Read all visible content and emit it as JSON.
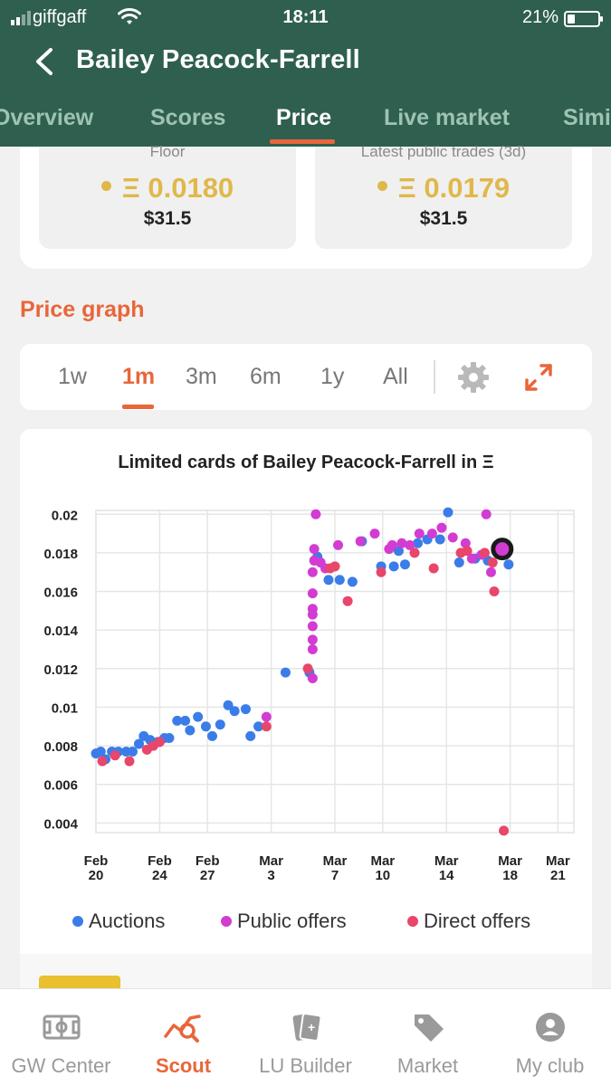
{
  "status": {
    "carrier": "giffgaff",
    "time": "18:11",
    "battery": "21%"
  },
  "header": {
    "title": "Bailey Peacock-Farrell"
  },
  "tabs": [
    {
      "label": "Overview",
      "active": false
    },
    {
      "label": "Scores",
      "active": false
    },
    {
      "label": "Price",
      "active": true
    },
    {
      "label": "Live market",
      "active": false
    },
    {
      "label": "Simi",
      "active": false
    }
  ],
  "price_cards": [
    {
      "label": "Floor",
      "eth": "Ξ 0.0180",
      "usd": "$31.5"
    },
    {
      "label": "Latest public trades (3d)",
      "eth": "Ξ 0.0179",
      "usd": "$31.5"
    }
  ],
  "section_title": "Price graph",
  "ranges": [
    {
      "label": "1w",
      "active": false
    },
    {
      "label": "1m",
      "active": true
    },
    {
      "label": "3m",
      "active": false
    },
    {
      "label": "6m",
      "active": false
    },
    {
      "label": "1y",
      "active": false
    },
    {
      "label": "All",
      "active": false
    }
  ],
  "range_icons": {
    "settings": "gear-icon",
    "expand": "expand-icon"
  },
  "colors": {
    "header": "#2f5f4f",
    "accent": "#e8663a",
    "eth": "#e0b84a",
    "auctions": "#3a7de8",
    "public_offers": "#d23cd2",
    "direct_offers": "#e8466a"
  },
  "chart_data": {
    "type": "scatter",
    "title": "Limited cards of Bailey Peacock-Farrell in Ξ",
    "ylim": [
      0.0035,
      0.0202
    ],
    "yticks": [
      "0.02",
      "0.018",
      "0.016",
      "0.014",
      "0.012",
      "0.01",
      "0.008",
      "0.006",
      "0.004"
    ],
    "ytick_values": [
      0.02,
      0.018,
      0.016,
      0.014,
      0.012,
      0.01,
      0.008,
      0.006,
      0.004
    ],
    "xlim": [
      0,
      30
    ],
    "xticks": [
      {
        "month": "Feb",
        "day": "20",
        "x": 0
      },
      {
        "month": "Feb",
        "day": "24",
        "x": 4
      },
      {
        "month": "Feb",
        "day": "27",
        "x": 7
      },
      {
        "month": "Mar",
        "day": "3",
        "x": 11
      },
      {
        "month": "Mar",
        "day": "7",
        "x": 15
      },
      {
        "month": "Mar",
        "day": "10",
        "x": 18
      },
      {
        "month": "Mar",
        "day": "14",
        "x": 22
      },
      {
        "month": "Mar",
        "day": "18",
        "x": 26
      },
      {
        "month": "Mar",
        "day": "21",
        "x": 29
      }
    ],
    "grid": true,
    "legend_position": "bottom",
    "series": [
      {
        "name": "Auctions",
        "color": "#3a7de8",
        "points": [
          [
            0.0,
            0.0076
          ],
          [
            0.3,
            0.0077
          ],
          [
            0.6,
            0.0073
          ],
          [
            1.0,
            0.0077
          ],
          [
            1.4,
            0.0077
          ],
          [
            1.9,
            0.0077
          ],
          [
            2.3,
            0.0077
          ],
          [
            2.7,
            0.0081
          ],
          [
            3.0,
            0.0085
          ],
          [
            3.4,
            0.0083
          ],
          [
            3.9,
            0.0082
          ],
          [
            4.3,
            0.0084
          ],
          [
            4.6,
            0.0084
          ],
          [
            5.1,
            0.0093
          ],
          [
            5.6,
            0.0093
          ],
          [
            5.9,
            0.0088
          ],
          [
            6.4,
            0.0095
          ],
          [
            6.9,
            0.009
          ],
          [
            7.3,
            0.0085
          ],
          [
            7.8,
            0.0091
          ],
          [
            8.3,
            0.0101
          ],
          [
            8.7,
            0.0098
          ],
          [
            9.4,
            0.0099
          ],
          [
            9.7,
            0.0085
          ],
          [
            10.2,
            0.009
          ],
          [
            11.9,
            0.0118
          ],
          [
            13.4,
            0.0118
          ],
          [
            13.9,
            0.0178
          ],
          [
            14.6,
            0.0166
          ],
          [
            15.3,
            0.0166
          ],
          [
            16.1,
            0.0165
          ],
          [
            16.7,
            0.0186
          ],
          [
            17.9,
            0.0173
          ],
          [
            18.7,
            0.0173
          ],
          [
            19.0,
            0.0181
          ],
          [
            19.4,
            0.0174
          ],
          [
            20.2,
            0.0185
          ],
          [
            20.8,
            0.0187
          ],
          [
            21.6,
            0.0187
          ],
          [
            22.1,
            0.0201
          ],
          [
            22.8,
            0.0175
          ],
          [
            23.8,
            0.0177
          ],
          [
            24.6,
            0.0176
          ],
          [
            25.9,
            0.0174
          ]
        ]
      },
      {
        "name": "Public offers",
        "color": "#d23cd2",
        "points": [
          [
            13.6,
            0.0115
          ],
          [
            13.6,
            0.013
          ],
          [
            13.6,
            0.0135
          ],
          [
            13.6,
            0.0142
          ],
          [
            13.6,
            0.0148
          ],
          [
            13.6,
            0.0151
          ],
          [
            13.6,
            0.0159
          ],
          [
            13.6,
            0.017
          ],
          [
            13.7,
            0.0176
          ],
          [
            13.7,
            0.0182
          ],
          [
            13.8,
            0.02
          ],
          [
            14.1,
            0.0175
          ],
          [
            14.4,
            0.0172
          ],
          [
            15.2,
            0.0184
          ],
          [
            16.6,
            0.0186
          ],
          [
            17.5,
            0.019
          ],
          [
            18.4,
            0.0182
          ],
          [
            18.6,
            0.0184
          ],
          [
            19.2,
            0.0185
          ],
          [
            19.7,
            0.0184
          ],
          [
            20.3,
            0.019
          ],
          [
            21.1,
            0.019
          ],
          [
            21.7,
            0.0193
          ],
          [
            22.4,
            0.0188
          ],
          [
            23.2,
            0.0185
          ],
          [
            23.6,
            0.0177
          ],
          [
            24.2,
            0.0179
          ],
          [
            24.5,
            0.02
          ],
          [
            24.8,
            0.017
          ],
          [
            25.4,
            0.0182
          ],
          [
            25.7,
            0.0179
          ],
          [
            10.7,
            0.0095
          ]
        ]
      },
      {
        "name": "Direct offers",
        "color": "#e8466a",
        "points": [
          [
            0.4,
            0.0072
          ],
          [
            1.2,
            0.0075
          ],
          [
            2.1,
            0.0072
          ],
          [
            3.2,
            0.0078
          ],
          [
            3.6,
            0.008
          ],
          [
            4.0,
            0.0082
          ],
          [
            10.7,
            0.009
          ],
          [
            13.3,
            0.012
          ],
          [
            14.7,
            0.0172
          ],
          [
            15.0,
            0.0173
          ],
          [
            15.8,
            0.0155
          ],
          [
            17.9,
            0.017
          ],
          [
            20.0,
            0.018
          ],
          [
            21.2,
            0.0172
          ],
          [
            22.9,
            0.018
          ],
          [
            23.3,
            0.0181
          ],
          [
            24.4,
            0.018
          ],
          [
            24.9,
            0.0175
          ],
          [
            25.0,
            0.016
          ],
          [
            25.6,
            0.0036
          ]
        ]
      }
    ],
    "highlight": {
      "x": 25.5,
      "y": 0.0182
    }
  },
  "legend": [
    {
      "label": "Auctions",
      "color": "#3a7de8"
    },
    {
      "label": "Public offers",
      "color": "#d23cd2"
    },
    {
      "label": "Direct offers",
      "color": "#e8466a"
    }
  ],
  "bottom_nav": [
    {
      "label": "GW Center",
      "icon": "pitch-icon",
      "active": false
    },
    {
      "label": "Scout",
      "icon": "scout-chart-icon",
      "active": true
    },
    {
      "label": "LU Builder",
      "icon": "cards-icon",
      "active": false
    },
    {
      "label": "Market",
      "icon": "tag-icon",
      "active": false
    },
    {
      "label": "My club",
      "icon": "avatar-icon",
      "active": false
    }
  ]
}
